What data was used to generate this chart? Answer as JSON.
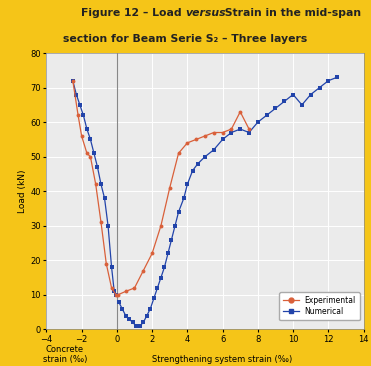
{
  "title_bg": "#F5C518",
  "title_color": "#222222",
  "plot_bg": "#ebebeb",
  "exp_concrete_x": [
    -2.5,
    -2.2,
    -2.0,
    -1.7,
    -1.5,
    -1.2,
    -0.9,
    -0.6,
    -0.3,
    -0.05
  ],
  "exp_concrete_y": [
    72,
    62,
    56,
    51,
    50,
    42,
    31,
    19,
    12,
    10
  ],
  "exp_strength_x": [
    0.05,
    0.5,
    1.0,
    1.5,
    2.0,
    2.5,
    3.0,
    3.5,
    4.0,
    4.5,
    5.0,
    5.5,
    6.0,
    6.5,
    7.0,
    7.5
  ],
  "exp_strength_y": [
    10,
    11,
    12,
    17,
    22,
    30,
    41,
    51,
    54,
    55,
    56,
    57,
    57,
    58,
    63,
    58
  ],
  "num_concrete_x": [
    -2.5,
    -2.3,
    -2.1,
    -1.9,
    -1.7,
    -1.5,
    -1.3,
    -1.1,
    -0.9,
    -0.7,
    -0.5,
    -0.3,
    -0.15,
    -0.05
  ],
  "num_concrete_y": [
    72,
    68,
    65,
    62,
    58,
    55,
    51,
    47,
    42,
    38,
    30,
    18,
    11,
    10
  ],
  "num_strength_x": [
    0.1,
    0.3,
    0.5,
    0.7,
    0.9,
    1.1,
    1.3,
    1.5,
    1.7,
    1.9,
    2.1,
    2.3,
    2.5,
    2.7,
    2.9,
    3.1,
    3.3,
    3.5,
    3.8,
    4.0,
    4.3,
    4.6,
    5.0,
    5.5,
    6.0,
    6.5,
    7.0,
    7.5,
    8.0,
    8.5,
    9.0,
    9.5,
    10.0,
    10.5,
    11.0,
    11.5,
    12.0,
    12.5
  ],
  "num_strength_y": [
    8,
    6,
    4,
    3,
    2,
    1,
    1,
    2,
    4,
    6,
    9,
    12,
    15,
    18,
    22,
    26,
    30,
    34,
    38,
    42,
    46,
    48,
    50,
    52,
    55,
    57,
    58,
    57,
    60,
    62,
    64,
    66,
    68,
    65,
    68,
    70,
    72,
    73
  ],
  "exp_color": "#d9603a",
  "num_color": "#2244aa",
  "xlim_left": -4,
  "xlim_right": 14,
  "ylim_bottom": 0,
  "ylim_top": 80,
  "xticks": [
    -4,
    -2,
    0,
    2,
    4,
    6,
    8,
    10,
    12,
    14
  ],
  "yticks": [
    0,
    10,
    20,
    30,
    40,
    50,
    60,
    70,
    80
  ],
  "ylabel": "Load (kN)",
  "xlabel_left": "Concrete\nstrain (‰)",
  "xlabel_right": "Strengthening system strain (‰)",
  "legend_exp": "Experimental",
  "legend_num": "Numerical"
}
